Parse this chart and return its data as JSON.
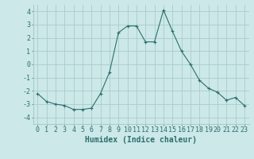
{
  "x": [
    0,
    1,
    2,
    3,
    4,
    5,
    6,
    7,
    8,
    9,
    10,
    11,
    12,
    13,
    14,
    15,
    16,
    17,
    18,
    19,
    20,
    21,
    22,
    23
  ],
  "y": [
    -2.2,
    -2.8,
    -3.0,
    -3.1,
    -3.4,
    -3.4,
    -3.3,
    -2.2,
    -0.6,
    2.4,
    2.9,
    2.9,
    1.7,
    1.7,
    4.1,
    2.5,
    1.0,
    0.0,
    -1.2,
    -1.8,
    -2.1,
    -2.7,
    -2.5,
    -3.1
  ],
  "line_color": "#2d6e6e",
  "bg_color": "#cce8e8",
  "grid_color": "#aacccc",
  "xlabel": "Humidex (Indice chaleur)",
  "xlim": [
    -0.5,
    23.5
  ],
  "ylim": [
    -4.5,
    4.5
  ],
  "yticks": [
    -4,
    -3,
    -2,
    -1,
    0,
    1,
    2,
    3,
    4
  ],
  "xticks": [
    0,
    1,
    2,
    3,
    4,
    5,
    6,
    7,
    8,
    9,
    10,
    11,
    12,
    13,
    14,
    15,
    16,
    17,
    18,
    19,
    20,
    21,
    22,
    23
  ],
  "tick_fontsize": 6,
  "xlabel_fontsize": 7
}
